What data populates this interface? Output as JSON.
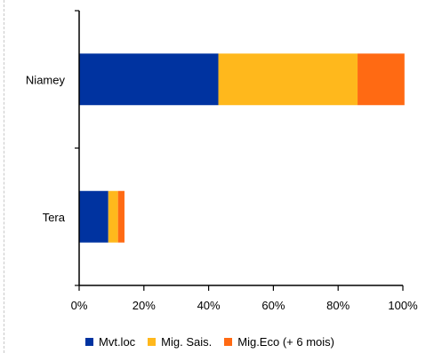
{
  "chart_data": {
    "type": "bar",
    "orientation": "horizontal",
    "stacked": true,
    "title": "",
    "xlabel": "",
    "ylabel": "",
    "categories": [
      "Niamey",
      "Tera"
    ],
    "series": [
      {
        "name": "Mvt.loc",
        "color": "#0033A0",
        "values": [
          43,
          9
        ]
      },
      {
        "name": "Mig. Sais.",
        "color": "#FFB81C",
        "values": [
          43,
          3
        ]
      },
      {
        "name": "Mig.Eco (+ 6 mois)",
        "color": "#FF6A13",
        "values": [
          14.5,
          2
        ]
      }
    ],
    "xlim": [
      0,
      100
    ],
    "xticks": [
      "0%",
      "20%",
      "40%",
      "60%",
      "80%",
      "100%"
    ],
    "grid": false,
    "legend_position": "bottom"
  }
}
